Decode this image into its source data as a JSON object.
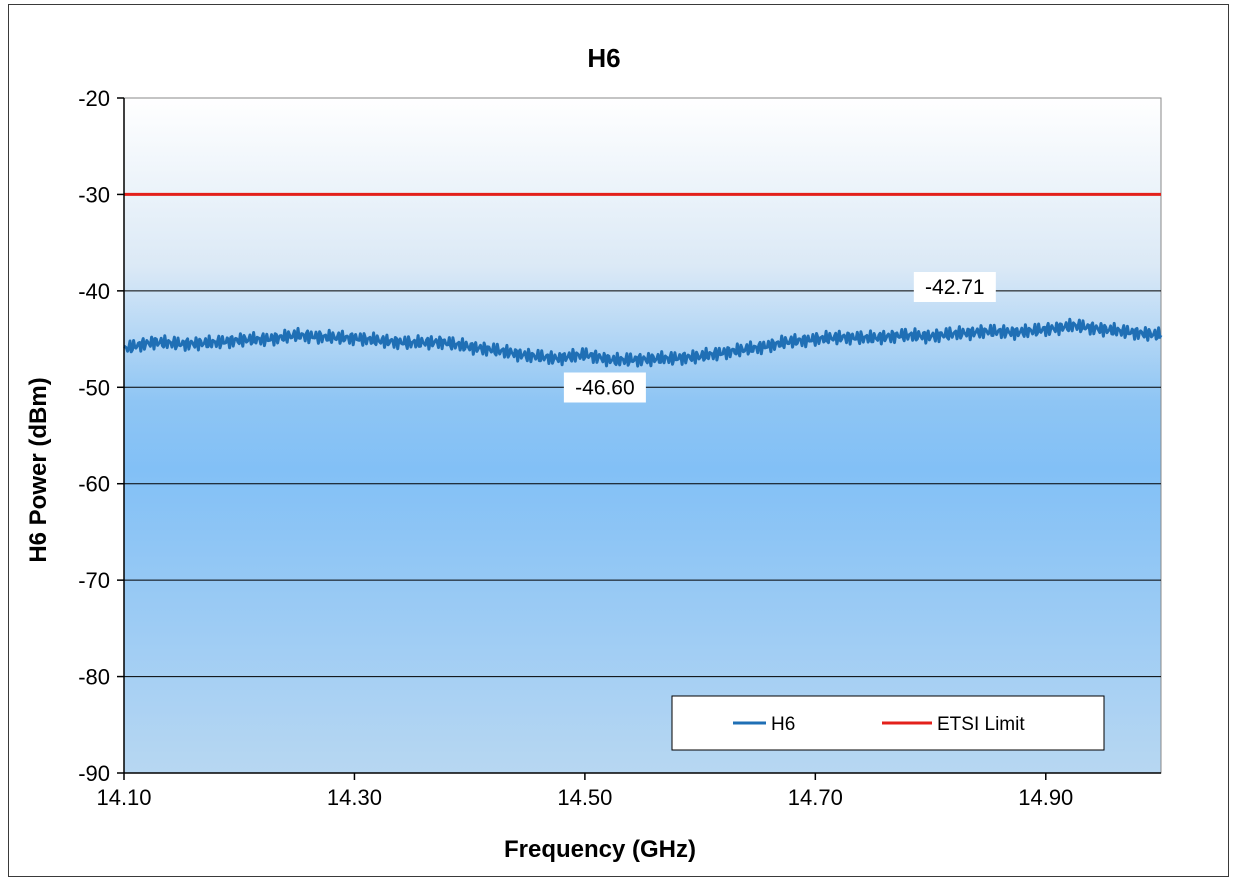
{
  "chart_data": {
    "type": "line",
    "title": "H6",
    "xlabel": "Frequency (GHz)",
    "ylabel": "H6 Power (dBm)",
    "xlim": [
      14.1,
      15.0
    ],
    "ylim": [
      -90,
      -20
    ],
    "x_ticks": [
      "14.10",
      "14.30",
      "14.50",
      "14.70",
      "14.90"
    ],
    "y_ticks": [
      "-20",
      "-30",
      "-40",
      "-50",
      "-60",
      "-70",
      "-80",
      "-90"
    ],
    "grid": true,
    "legend_position": "bottom-right",
    "series": [
      {
        "name": "H6",
        "color": "#1f6fb5",
        "x": [
          14.1,
          14.125,
          14.15,
          14.175,
          14.2,
          14.225,
          14.25,
          14.275,
          14.3,
          14.325,
          14.35,
          14.375,
          14.4,
          14.425,
          14.45,
          14.475,
          14.5,
          14.525,
          14.55,
          14.575,
          14.6,
          14.625,
          14.65,
          14.675,
          14.7,
          14.725,
          14.75,
          14.775,
          14.8,
          14.825,
          14.85,
          14.875,
          14.9,
          14.925,
          14.95,
          14.975,
          15.0
        ],
        "y": [
          -46.0,
          -45.3,
          -45.5,
          -45.4,
          -45.1,
          -45.0,
          -44.6,
          -44.8,
          -44.9,
          -45.2,
          -45.4,
          -45.3,
          -45.8,
          -46.2,
          -46.7,
          -47.0,
          -46.6,
          -47.2,
          -47.1,
          -47.0,
          -46.8,
          -46.3,
          -45.9,
          -45.3,
          -45.0,
          -44.8,
          -44.9,
          -44.6,
          -44.7,
          -44.4,
          -44.2,
          -44.3,
          -44.0,
          -43.6,
          -44.0,
          -44.3,
          -44.6
        ]
      },
      {
        "name": "ETSI Limit",
        "color": "#e3201b",
        "x": [
          14.1,
          15.0
        ],
        "y": [
          -30,
          -30
        ]
      }
    ],
    "annotations": [
      {
        "text": "-42.71",
        "x": 14.92,
        "y": -42.71
      },
      {
        "text": "-46.60",
        "x": 14.5,
        "y": -46.6
      }
    ]
  }
}
